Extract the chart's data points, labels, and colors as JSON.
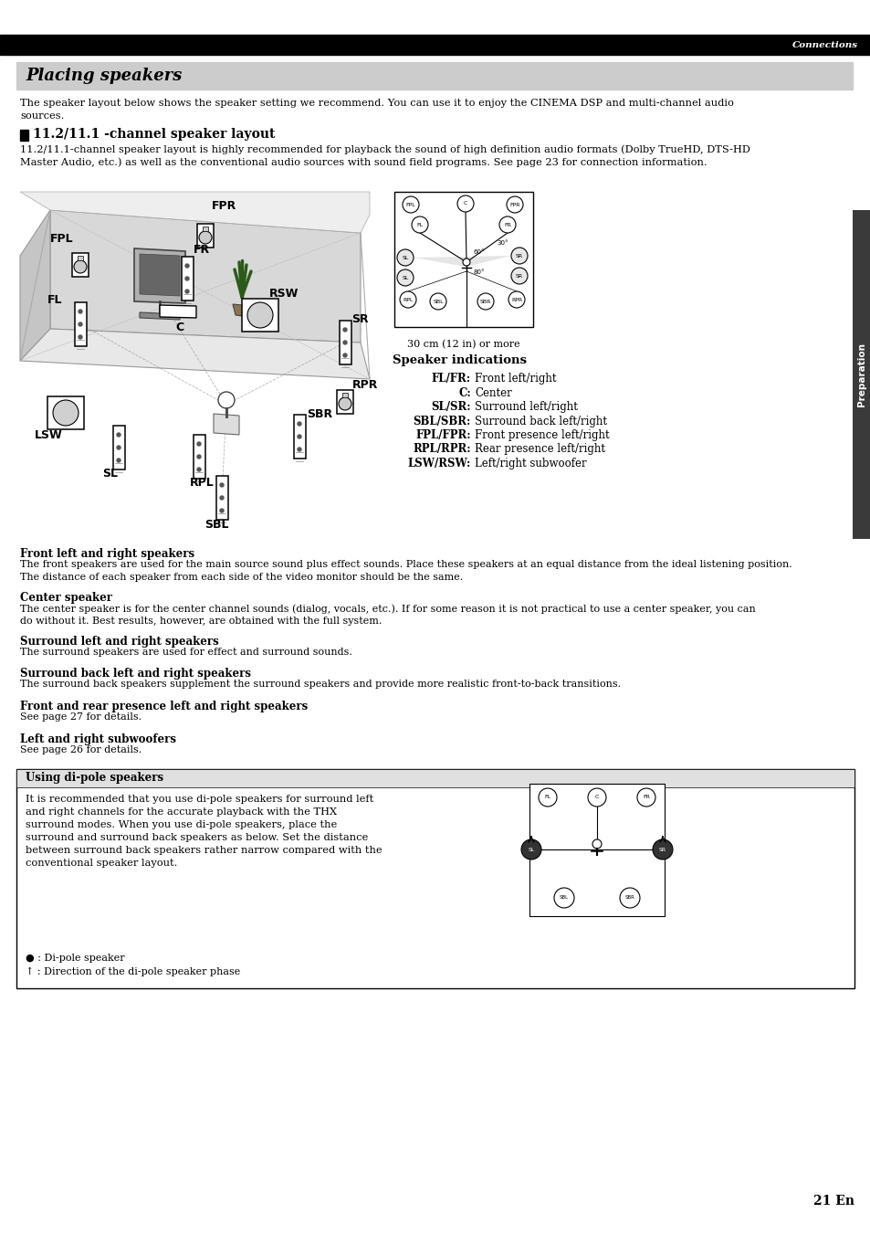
{
  "page_title": "Connections",
  "section_title": "Placing speakers",
  "intro_text": "The speaker layout below shows the speaker setting we recommend. You can use it to enjoy the CINEMA DSP and multi-channel audio\nsources.",
  "subsection_title": "11.2/11.1 -channel speaker layout",
  "subsection_text": "11.2/11.1-channel speaker layout is highly recommended for playback the sound of high definition audio formats (Dolby TrueHD, DTS-HD\nMaster Audio, etc.) as well as the conventional audio sources with sound field programs. See page 23 for connection information.",
  "diagram_caption": "30 cm (12 in) or more",
  "speaker_indications_title": "Speaker indications",
  "speaker_indications": [
    {
      "label": "FL/FR",
      "text": "Front left/right"
    },
    {
      "label": "C",
      "text": "Center"
    },
    {
      "label": "SL/SR",
      "text": "Surround left/right"
    },
    {
      "label": "SBL/SBR",
      "text": "Surround back left/right"
    },
    {
      "label": "FPL/FPR",
      "text": "Front presence left/right"
    },
    {
      "label": "RPL/RPR",
      "text": "Rear presence left/right"
    },
    {
      "label": "LSW/RSW",
      "text": "Left/right subwoofer"
    }
  ],
  "sections": [
    {
      "heading": "Front left and right speakers",
      "text": "The front speakers are used for the main source sound plus effect sounds. Place these speakers at an equal distance from the ideal listening position.\nThe distance of each speaker from each side of the video monitor should be the same."
    },
    {
      "heading": "Center speaker",
      "text": "The center speaker is for the center channel sounds (dialog, vocals, etc.). If for some reason it is not practical to use a center speaker, you can\ndo without it. Best results, however, are obtained with the full system."
    },
    {
      "heading": "Surround left and right speakers",
      "text": "The surround speakers are used for effect and surround sounds."
    },
    {
      "heading": "Surround back left and right speakers",
      "text": "The surround back speakers supplement the surround speakers and provide more realistic front-to-back transitions."
    },
    {
      "heading": "Front and rear presence left and right speakers",
      "text": "See page 27 for details."
    },
    {
      "heading": "Left and right subwoofers",
      "text": "See page 26 for details."
    }
  ],
  "dipole_box_title": "Using di-pole speakers",
  "dipole_box_text": "It is recommended that you use di-pole speakers for surround left\nand right channels for the accurate playback with the THX\nsurround modes. When you use di-pole speakers, place the\nsurround and surround back speakers as below. Set the distance\nbetween surround back speakers rather narrow compared with the\nconventional speaker layout.",
  "dipole_legend": [
    "● : Di-pole speaker",
    "↑ : Direction of the di-pole speaker phase"
  ],
  "page_number": "21 En",
  "sidebar_label": "Preparation",
  "background_color": "#ffffff",
  "header_bar_color": "#000000",
  "section_title_bg": "#cccccc",
  "sidebar_color": "#3a3a3a"
}
